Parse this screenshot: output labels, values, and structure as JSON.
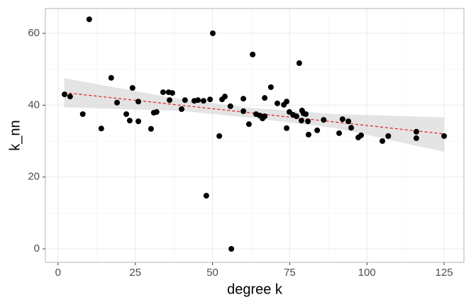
{
  "chart_data": {
    "type": "scatter",
    "x_label": "degree k",
    "y_label": "k_nn",
    "x": [
      2.1,
      3.9,
      8.0,
      10.1,
      14.0,
      17.2,
      19.1,
      22.1,
      23.2,
      24.1,
      26.0,
      26.0,
      30.1,
      31.0,
      31.9,
      34.0,
      35.8,
      37.0,
      36.1,
      40.0,
      41.1,
      44.1,
      45.3,
      47.1,
      48.0,
      49.2,
      50.1,
      52.2,
      53.1,
      54.0,
      55.8,
      56.1,
      60.0,
      60.0,
      61.8,
      63.0,
      64.1,
      65.3,
      66.2,
      66.9,
      66.9,
      68.9,
      71.0,
      73.1,
      74.0,
      74.0,
      74.9,
      76.1,
      77.2,
      78.1,
      78.8,
      79.0,
      79.5,
      80.2,
      80.9,
      81.1,
      83.9,
      86.0,
      91.0,
      92.1,
      94.0,
      94.9,
      97.2,
      98.1,
      105.0,
      106.9,
      116.0,
      116.0,
      125.0
    ],
    "y": [
      43.0,
      42.4,
      37.5,
      63.9,
      33.5,
      47.6,
      40.7,
      37.5,
      35.7,
      44.8,
      41.0,
      35.5,
      33.4,
      37.9,
      38.1,
      43.6,
      43.6,
      43.4,
      41.4,
      38.9,
      41.4,
      41.2,
      41.4,
      41.2,
      14.8,
      41.6,
      60.0,
      31.4,
      41.6,
      42.4,
      39.7,
      0,
      38.3,
      41.8,
      34.7,
      54.1,
      37.5,
      37.1,
      36.3,
      42.0,
      36.9,
      45.0,
      40.5,
      40.1,
      41.0,
      33.6,
      38.1,
      37.3,
      36.9,
      51.7,
      35.7,
      38.5,
      37.7,
      37.5,
      35.5,
      31.8,
      33.0,
      35.9,
      32.2,
      36.1,
      35.5,
      33.7,
      31.0,
      31.6,
      30.0,
      31.4,
      32.6,
      30.8,
      31.4
    ],
    "color": "#000000",
    "fit": {
      "color": "#e41a1c",
      "x": [
        2,
        125
      ],
      "y": [
        43.5,
        32.0
      ]
    },
    "band": {
      "color": "#d9d9d9",
      "x": [
        2,
        40,
        63,
        90,
        125
      ],
      "lower": [
        39.4,
        38.4,
        36.4,
        33.6,
        27.0
      ],
      "upper": [
        47.5,
        41.6,
        39.2,
        37.5,
        36.6
      ]
    },
    "xlim": [
      -4.1,
      131.4
    ],
    "ylim": [
      -3.75,
      66.9
    ],
    "xticks": [
      0,
      25,
      50,
      75,
      100,
      125
    ],
    "yticks": [
      0,
      20,
      40,
      60
    ],
    "xminor": [
      12.5,
      37.5,
      62.5,
      87.5,
      112.5
    ],
    "yminor": [
      10,
      30,
      50
    ],
    "grid": true
  }
}
